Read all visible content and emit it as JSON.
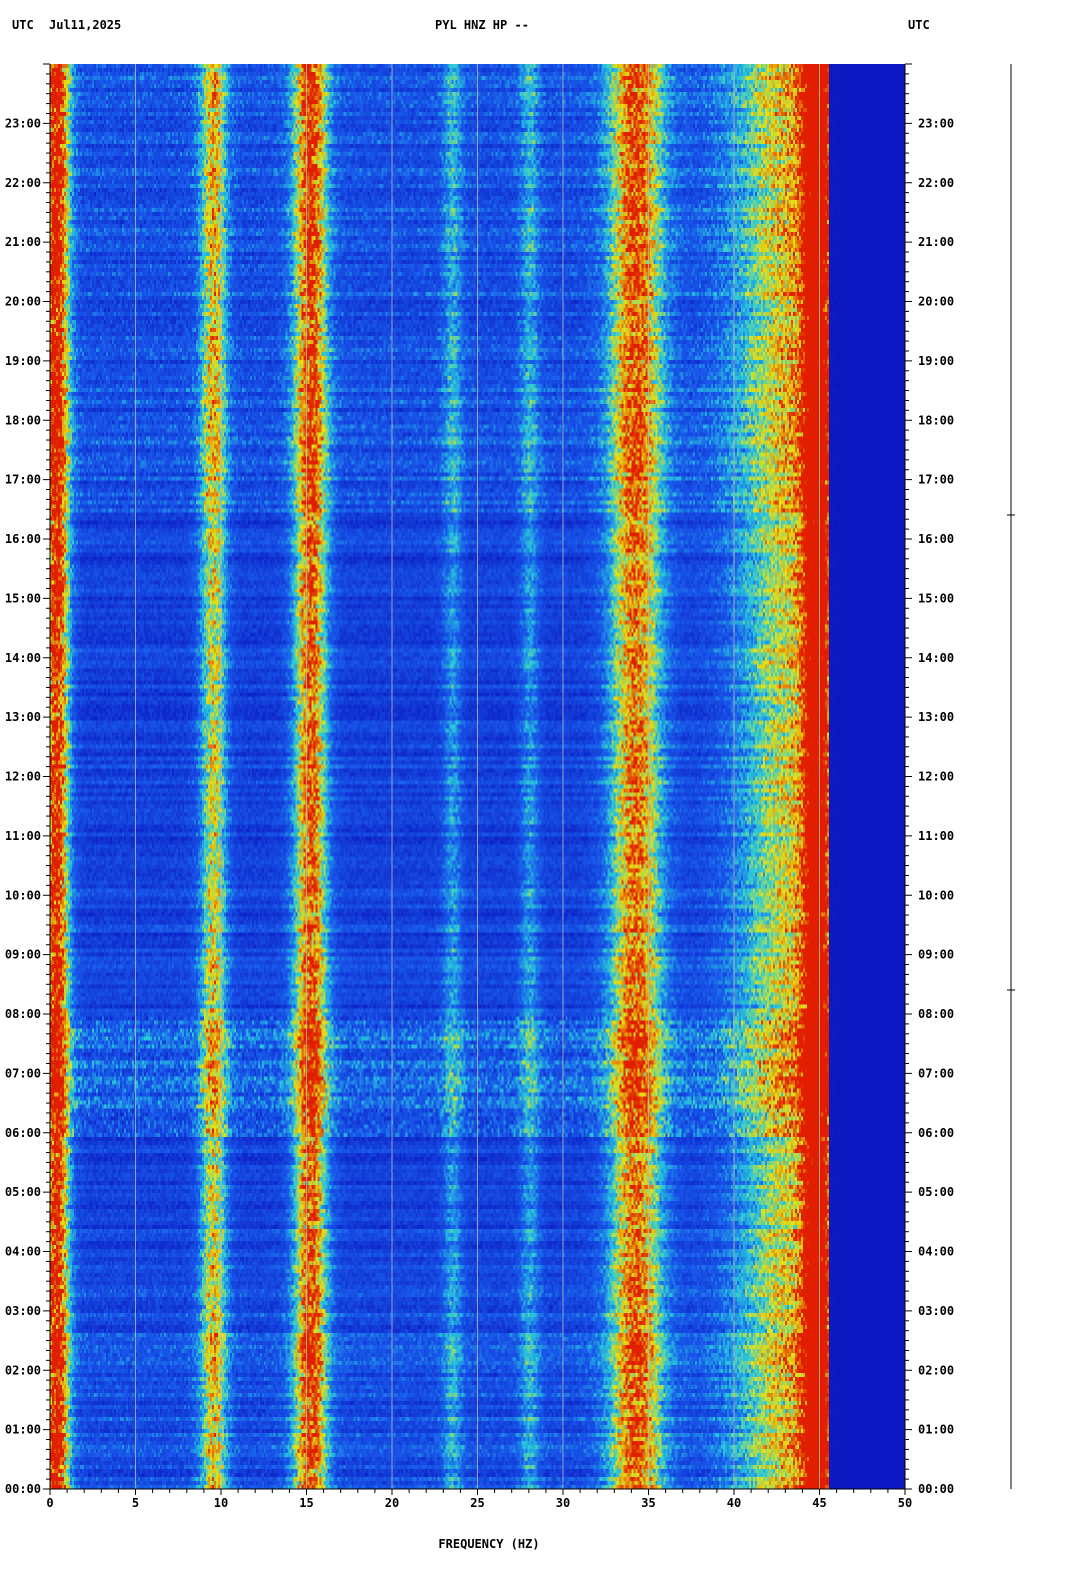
{
  "header": {
    "left_tz": "UTC",
    "date": "Jul11,2025",
    "station": "PYL HNZ HP --",
    "right_tz": "UTC"
  },
  "colors": {
    "background_low": "#0a1fd0",
    "cold_edge": "#0010a0",
    "mid": "#2ad0d8",
    "high": "#e8e000",
    "peak": "#e02000",
    "gridline": "#b8b8b8"
  },
  "chart_data": {
    "type": "heatmap",
    "title": "PYL HNZ HP --",
    "xlabel": "FREQUENCY (HZ)",
    "ylabel": "",
    "xlim": [
      0,
      50
    ],
    "ylim_hours": [
      0,
      24
    ],
    "x_ticks": [
      0,
      5,
      10,
      15,
      20,
      25,
      30,
      35,
      40,
      45,
      50
    ],
    "y_tick_labels": [
      "00:00",
      "01:00",
      "02:00",
      "03:00",
      "04:00",
      "05:00",
      "06:00",
      "07:00",
      "08:00",
      "09:00",
      "10:00",
      "11:00",
      "12:00",
      "13:00",
      "14:00",
      "15:00",
      "16:00",
      "17:00",
      "18:00",
      "19:00",
      "20:00",
      "21:00",
      "22:00",
      "23:00"
    ],
    "grid": true,
    "frequency_bands": [
      {
        "center_hz": 0.3,
        "width_hz": 0.8,
        "intensity": 0.85
      },
      {
        "center_hz": 9.5,
        "width_hz": 0.8,
        "intensity": 0.55
      },
      {
        "center_hz": 15.2,
        "width_hz": 1.0,
        "intensity": 0.75
      },
      {
        "center_hz": 23.5,
        "width_hz": 0.6,
        "intensity": 0.25
      },
      {
        "center_hz": 28.0,
        "width_hz": 0.6,
        "intensity": 0.25
      },
      {
        "center_hz": 34.2,
        "width_hz": 1.6,
        "intensity": 0.7
      },
      {
        "center_hz": 43.5,
        "width_hz": 3.5,
        "intensity": 0.55
      },
      {
        "center_hz": 44.8,
        "width_hz": 0.8,
        "intensity": 0.7
      }
    ],
    "high_energy_hours": [
      {
        "start": 6.0,
        "end": 8.0,
        "intensity": 0.45
      },
      {
        "start": 16.5,
        "end": 24.0,
        "intensity": 0.25
      },
      {
        "start": 0.0,
        "end": 3.5,
        "intensity": 0.2
      }
    ],
    "rolloff_hz": 45.5
  }
}
